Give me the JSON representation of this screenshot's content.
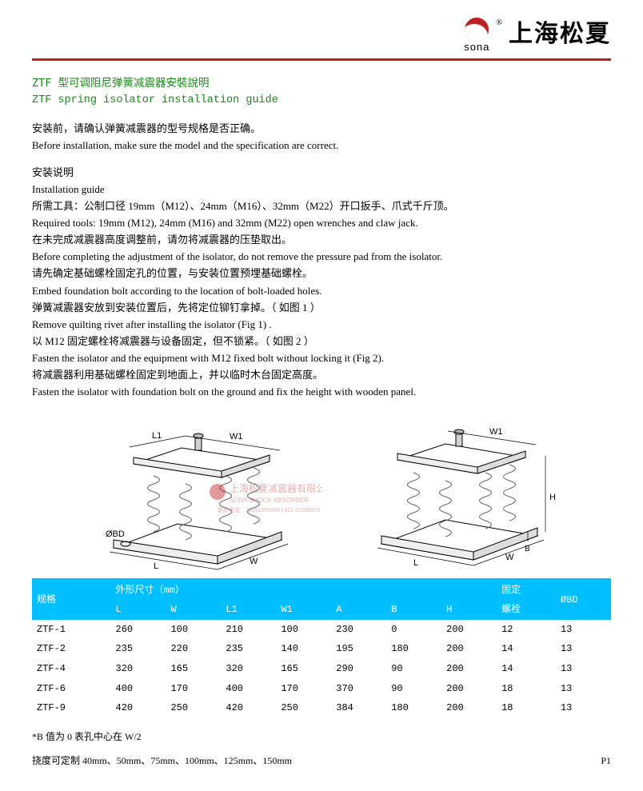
{
  "logo": {
    "sub": "sona",
    "reg": "®",
    "text": "上海松夏"
  },
  "title_zh": "ZTF 型可调阻尼弹簧减震器安裝說明",
  "title_en": "ZTF spring isolator installation guide",
  "paras": [
    "安装前，请确认弹簧减震器的型号规格是否正确。",
    "Before installation, make sure the model and the specification are  correct.",
    "",
    "安装说明",
    "Installation guide",
    "所需工具：公制口径 19mm（M12）、24mm（M16）、32mm（M22）开口扳手、爪式千斤顶。",
    "Required tools: 19mm (M12), 24mm (M16) and 32mm (M22) open wrenches and claw jack.",
    "在未完成减震器高度调整前，请勿将减震器的压垫取出。",
    "Before completing the adjustment of the isolator, do not remove the pressure pad from the isolator.",
    "请先确定基础螺栓固定孔的位置，与安装位置预埋基础螺栓。",
    "Embed foundation bolt according to the location of bolt-loaded holes.",
    "弹簧减震器安放到安装位置后，先将定位铆钉拿掉。（ 如图 1 ）",
    "Remove quilting rivet after installing the isolator (Fig 1) .",
    "以 M12 固定螺栓将减震器与设备固定，但不锁紧。（ 如图 2 ）",
    "Fasten the isolator and the equipment with M12 fixed bolt without locking it (Fig 2).",
    "将减震器利用基础螺栓固定到地面上，并以临时木台固定高度。",
    "Fasten the isolator with foundation bolt on the ground and fix the height with wooden panel."
  ],
  "diagram_labels": {
    "L1": "L1",
    "W1": "W1",
    "OBD": "ØBD",
    "L": "L",
    "W": "W",
    "B": "B",
    "H": "H",
    "watermark1": "上海松夏减震器有限公司",
    "watermark2": "SONA SHOCK ABSORBER",
    "watermark3": "联系电话：15201855009 | 021-61556519"
  },
  "table": {
    "header_group_dim": "外形尺寸（mm）",
    "header_group_bolt": "固定",
    "headers": [
      "规格",
      "L",
      "W",
      "L1",
      "W1",
      "A",
      "B",
      "H",
      "螺栓",
      "ØBD"
    ],
    "rows": [
      [
        "ZTF-1",
        "260",
        "100",
        "210",
        "100",
        "230",
        "0",
        "200",
        "12",
        "13"
      ],
      [
        "ZTF-2",
        "235",
        "220",
        "235",
        "140",
        "195",
        "180",
        "200",
        "14",
        "13"
      ],
      [
        "ZTF-4",
        "320",
        "165",
        "320",
        "165",
        "290",
        "90",
        "200",
        "14",
        "13"
      ],
      [
        "ZTF-6",
        "400",
        "170",
        "400",
        "170",
        "370",
        "90",
        "200",
        "18",
        "13"
      ],
      [
        "ZTF-9",
        "420",
        "250",
        "420",
        "250",
        "384",
        "180",
        "200",
        "18",
        "13"
      ]
    ]
  },
  "footer_note1": "*B 值为 0 表孔中心在 W/2",
  "footer_note2": "挠度可定制 40mm、50mm、75mm、100mm、125mm、150mm",
  "page_no": "P1",
  "colors": {
    "accent_red": "#c02020",
    "title_green": "#178a17",
    "table_header": "#00bfff"
  }
}
